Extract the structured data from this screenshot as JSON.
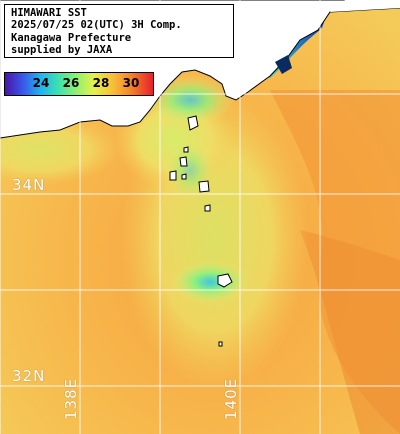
{
  "info_box": {
    "line1": "HIMAWARI SST",
    "line2": "2025/07/25 02(UTC) 3H Comp.",
    "line3": "Kanagawa Prefecture",
    "line4": "supplied by JAXA"
  },
  "legend": {
    "ticks": [
      "24",
      "26",
      "28",
      "30"
    ]
  },
  "grid_labels": {
    "lat_34": "34N",
    "lat_32": "32N",
    "lon_138": "138E",
    "lon_140": "140E"
  },
  "colors": {
    "land": "#ffffff",
    "coastline": "#000000",
    "grid": "#ffffff",
    "sea_warm": "#f7b24a",
    "sea_mid": "#f0d060",
    "sea_cool": "#9ff07a",
    "sea_cold": "#37c8d8",
    "bay_cold": "#1f4fd0"
  }
}
